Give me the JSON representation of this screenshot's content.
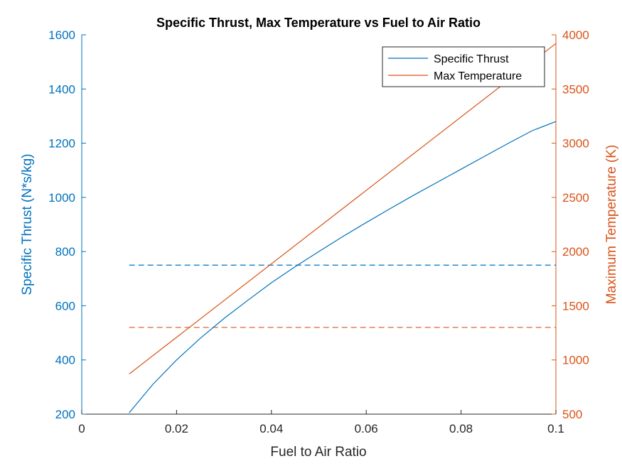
{
  "colors": {
    "series1": "#0072BD",
    "series2": "#D95319",
    "axis": "#262626",
    "background": "#ffffff"
  },
  "chart_data": {
    "type": "line",
    "title": "Specific Thrust, Max Temperature vs Fuel to Air Ratio",
    "xlabel": "Fuel to Air Ratio",
    "ylabel_left": "Specific Thrust (N*s/kg)",
    "ylabel_right": "Maximum Temperature (K)",
    "xlim": [
      0,
      0.1
    ],
    "ylim_left": [
      200,
      1600
    ],
    "ylim_right": [
      500,
      4000
    ],
    "xticks": [
      "0",
      "0.02",
      "0.04",
      "0.06",
      "0.08",
      "0.1"
    ],
    "yticks_left": [
      "200",
      "400",
      "600",
      "800",
      "1000",
      "1200",
      "1400",
      "1600"
    ],
    "yticks_right": [
      "500",
      "1000",
      "1500",
      "2000",
      "2500",
      "3000",
      "3500",
      "4000"
    ],
    "grid": false,
    "legend_position": "top-right",
    "series": [
      {
        "name": "Specific Thrust",
        "axis": "left",
        "style": "solid",
        "x": [
          0.01,
          0.015,
          0.02,
          0.025,
          0.03,
          0.035,
          0.04,
          0.045,
          0.05,
          0.055,
          0.06,
          0.065,
          0.07,
          0.075,
          0.08,
          0.085,
          0.09,
          0.095,
          0.1
        ],
        "y": [
          205,
          310,
          400,
          480,
          553,
          620,
          685,
          744,
          800,
          855,
          907,
          958,
          1008,
          1056,
          1104,
          1152,
          1200,
          1246,
          1280
        ]
      },
      {
        "name": "Max Temperature",
        "axis": "right",
        "style": "solid",
        "x": [
          0.01,
          0.1
        ],
        "y": [
          870,
          3920
        ]
      }
    ],
    "reference_lines": [
      {
        "axis": "left",
        "y": 750,
        "x_range": [
          0.01,
          0.1
        ],
        "style": "dashed",
        "color": "#0072BD"
      },
      {
        "axis": "right",
        "y": 1300,
        "x_range": [
          0.01,
          0.1
        ],
        "style": "dashed",
        "color": "#D95319"
      }
    ]
  }
}
